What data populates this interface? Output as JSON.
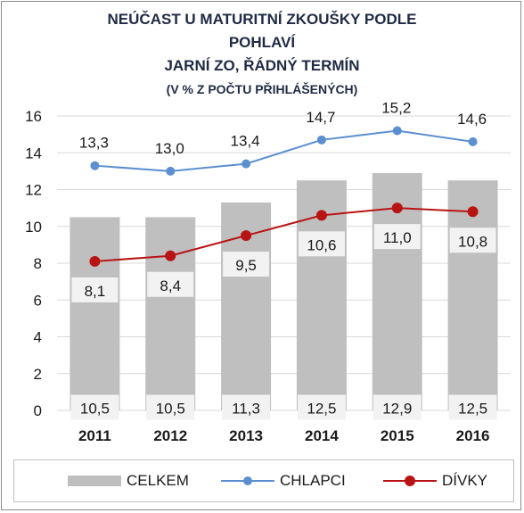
{
  "chart_data": {
    "type": "bar",
    "title": "NEÚČAST U MATURITNÍ ZKOUŠKY PODLE",
    "title_line2": "POHLAVÍ",
    "subtitle": "JARNÍ ZO, ŘÁDNÝ TERMÍN",
    "subtitle_line2": "(V % Z POČTU PŘIHLÁŠENÝCH)",
    "categories": [
      "2011",
      "2012",
      "2013",
      "2014",
      "2015",
      "2016"
    ],
    "ylim": [
      0,
      16
    ],
    "yticks": [
      "0",
      "2",
      "4",
      "6",
      "8",
      "10",
      "12",
      "14",
      "16"
    ],
    "grid": true,
    "legend_position": "bottom",
    "series": [
      {
        "name": "CELKEM",
        "kind": "bar",
        "color": "#bfbfbf",
        "values": [
          10.5,
          10.5,
          11.3,
          12.5,
          12.9,
          12.5
        ],
        "labels": [
          "10,5",
          "10,5",
          "11,3",
          "12,5",
          "12,9",
          "12,5"
        ]
      },
      {
        "name": "CHLAPCI",
        "kind": "line",
        "color": "#5b8fd0",
        "values": [
          13.3,
          13.0,
          13.4,
          14.7,
          15.2,
          14.6
        ],
        "labels": [
          "13,3",
          "13,0",
          "13,4",
          "14,7",
          "15,2",
          "14,6"
        ]
      },
      {
        "name": "DÍVKY",
        "kind": "line",
        "color": "#b81414",
        "values": [
          8.1,
          8.4,
          9.5,
          10.6,
          11.0,
          10.8
        ],
        "labels": [
          "8,1",
          "8,4",
          "9,5",
          "10,6",
          "11,0",
          "10,8"
        ]
      }
    ]
  }
}
